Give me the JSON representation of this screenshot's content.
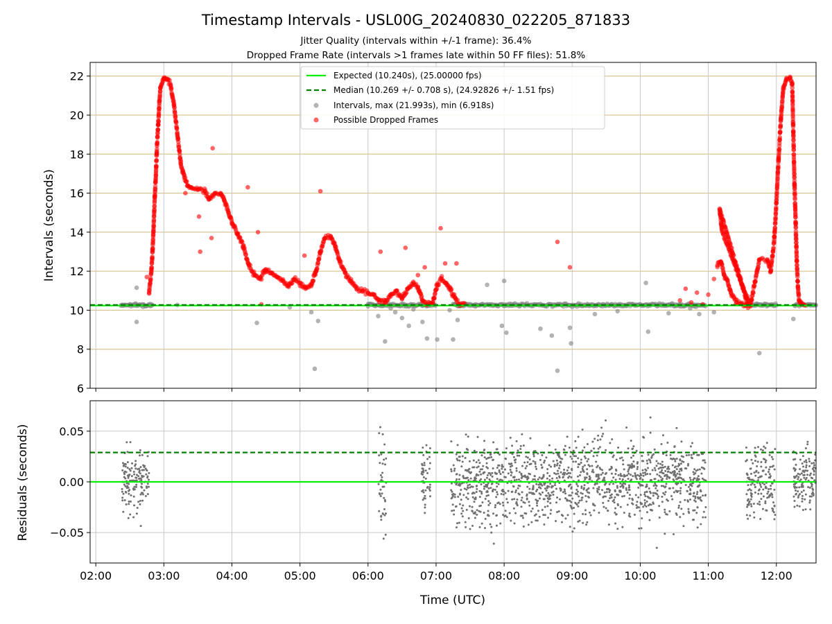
{
  "title": "Timestamp Intervals - USL00G_20240830_022205_871833",
  "subtitle_line1": "Jitter Quality (intervals within +/-1 frame): 36.4%",
  "subtitle_line2": "Dropped Frame Rate (intervals >1 frames late within 50 FF files): 51.8%",
  "colors": {
    "expected": "#00ee00",
    "median": "#008000",
    "interval_points": "#808080",
    "dropped_points": "#ff0000",
    "hgrid_top": "#d4b87a",
    "vgrid": "#c8c8c8",
    "residual_points": "#707070"
  },
  "chart_data": [
    {
      "type": "scatter",
      "ylabel": "Intervals (seconds)",
      "xlim": [
        "01:55",
        "12:35"
      ],
      "ylim": [
        6,
        22.7
      ],
      "yticks": [
        "6",
        "8",
        "10",
        "12",
        "14",
        "16",
        "18",
        "20",
        "22"
      ],
      "grid": true,
      "legend_position": "top-center",
      "legend": [
        "Expected (10.240s), (25.00000 fps)",
        "Median (10.269 +/- 0.708 s), (24.92826 +/- 1.51 fps)",
        "Intervals, max (21.993s), min (6.918s)",
        "Possible Dropped Frames"
      ],
      "expected_value": 10.24,
      "median_value": 10.269,
      "series": [
        {
          "name": "Intervals, max (21.993s), min (6.918s)",
          "points": [
            [
              "02:24",
              10.25
            ],
            [
              "02:30",
              10.3
            ],
            [
              "02:36",
              10.27
            ],
            [
              "02:42",
              10.28
            ],
            [
              "02:48",
              10.32
            ],
            [
              "02:36",
              11.15
            ],
            [
              "02:36",
              9.4
            ],
            [
              "03:12",
              10.27
            ],
            [
              "04:22",
              9.35
            ],
            [
              "04:51",
              10.15
            ],
            [
              "05:10",
              9.9
            ],
            [
              "05:13",
              7.0
            ],
            [
              "05:16",
              9.45
            ],
            [
              "06:00",
              10.2
            ],
            [
              "06:09",
              9.7
            ],
            [
              "06:15",
              8.4
            ],
            [
              "06:20",
              10.1
            ],
            [
              "06:24",
              9.9
            ],
            [
              "06:30",
              9.6
            ],
            [
              "06:36",
              9.2
            ],
            [
              "06:40",
              10.05
            ],
            [
              "06:48",
              9.4
            ],
            [
              "06:52",
              8.55
            ],
            [
              "07:01",
              8.5
            ],
            [
              "07:12",
              10.0
            ],
            [
              "07:15",
              8.5
            ],
            [
              "07:19",
              9.5
            ],
            [
              "07:25",
              10.25
            ],
            [
              "07:35",
              10.3
            ],
            [
              "07:45",
              11.3
            ],
            [
              "08:00",
              11.5
            ],
            [
              "07:58",
              9.2
            ],
            [
              "08:02",
              8.85
            ],
            [
              "08:32",
              9.05
            ],
            [
              "08:42",
              8.7
            ],
            [
              "08:47",
              6.9
            ],
            [
              "08:58",
              9.1
            ],
            [
              "08:59",
              8.3
            ],
            [
              "09:20",
              9.8
            ],
            [
              "09:40",
              9.95
            ],
            [
              "10:05",
              11.4
            ],
            [
              "10:07",
              8.9
            ],
            [
              "10:25",
              9.85
            ],
            [
              "10:35",
              10.2
            ],
            [
              "10:44",
              10.1
            ],
            [
              "10:52",
              9.8
            ],
            [
              "11:05",
              9.9
            ],
            [
              "11:45",
              7.8
            ],
            [
              "11:52",
              10.3
            ],
            [
              "12:00",
              10.25
            ],
            [
              "12:15",
              9.55
            ],
            [
              "12:20",
              10.3
            ],
            [
              "12:30",
              10.25
            ]
          ]
        },
        {
          "name": "Possible Dropped Frames",
          "points": [
            [
              "02:47",
              10.9
            ],
            [
              "02:49",
              12.0
            ],
            [
              "02:50",
              13.0
            ],
            [
              "02:51",
              14.3
            ],
            [
              "02:52",
              15.8
            ],
            [
              "02:53",
              17.0
            ],
            [
              "02:54",
              18.5
            ],
            [
              "02:55",
              19.5
            ],
            [
              "02:56",
              20.6
            ],
            [
              "02:57",
              21.4
            ],
            [
              "03:00",
              21.9
            ],
            [
              "03:03",
              21.8
            ],
            [
              "03:06",
              21.5
            ],
            [
              "03:09",
              20.5
            ],
            [
              "03:12",
              19.0
            ],
            [
              "03:15",
              17.5
            ],
            [
              "03:18",
              16.8
            ],
            [
              "03:21",
              16.4
            ],
            [
              "03:24",
              16.3
            ],
            [
              "03:30",
              16.2
            ],
            [
              "03:36",
              16.1
            ],
            [
              "03:40",
              15.7
            ],
            [
              "03:45",
              16.0
            ],
            [
              "03:50",
              16.0
            ],
            [
              "03:53",
              15.7
            ],
            [
              "03:57",
              15.0
            ],
            [
              "04:00",
              14.5
            ],
            [
              "04:05",
              13.9
            ],
            [
              "04:10",
              13.3
            ],
            [
              "04:15",
              12.3
            ],
            [
              "04:20",
              11.8
            ],
            [
              "04:25",
              11.6
            ],
            [
              "04:30",
              12.1
            ],
            [
              "04:35",
              11.9
            ],
            [
              "04:40",
              11.7
            ],
            [
              "04:45",
              11.5
            ],
            [
              "04:50",
              11.2
            ],
            [
              "04:55",
              11.6
            ],
            [
              "05:00",
              11.4
            ],
            [
              "05:05",
              11.1
            ],
            [
              "05:10",
              11.3
            ],
            [
              "05:14",
              12.0
            ],
            [
              "05:18",
              13.0
            ],
            [
              "05:22",
              13.7
            ],
            [
              "05:27",
              13.8
            ],
            [
              "05:31",
              13.3
            ],
            [
              "05:35",
              12.5
            ],
            [
              "05:40",
              11.9
            ],
            [
              "05:45",
              11.5
            ],
            [
              "05:50",
              11.1
            ],
            [
              "05:55",
              11.0
            ],
            [
              "06:00",
              10.9
            ],
            [
              "06:05",
              10.8
            ],
            [
              "06:10",
              10.5
            ],
            [
              "06:15",
              10.4
            ],
            [
              "06:20",
              10.8
            ],
            [
              "06:25",
              11.0
            ],
            [
              "06:30",
              10.6
            ],
            [
              "06:35",
              11.1
            ],
            [
              "06:40",
              11.4
            ],
            [
              "06:44",
              11.2
            ],
            [
              "06:48",
              10.5
            ],
            [
              "06:52",
              10.3
            ],
            [
              "06:57",
              10.4
            ],
            [
              "07:01",
              11.3
            ],
            [
              "07:05",
              11.6
            ],
            [
              "07:09",
              11.4
            ],
            [
              "07:13",
              11.0
            ],
            [
              "07:17",
              10.6
            ],
            [
              "07:21",
              10.3
            ],
            [
              "07:25",
              10.35
            ],
            [
              "02:45",
              11.7
            ],
            [
              "03:19",
              16.0
            ],
            [
              "03:31",
              14.8
            ],
            [
              "03:32",
              13.0
            ],
            [
              "03:42",
              13.7
            ],
            [
              "03:43",
              18.3
            ],
            [
              "04:14",
              16.3
            ],
            [
              "04:23",
              14.0
            ],
            [
              "04:26",
              10.3
            ],
            [
              "05:04",
              12.8
            ],
            [
              "05:18",
              16.1
            ],
            [
              "06:11",
              13.0
            ],
            [
              "06:33",
              13.2
            ],
            [
              "06:44",
              11.8
            ],
            [
              "06:50",
              12.2
            ],
            [
              "07:04",
              14.2
            ],
            [
              "07:08",
              12.4
            ],
            [
              "07:18",
              12.4
            ],
            [
              "08:47",
              13.5
            ],
            [
              "08:58",
              12.2
            ],
            [
              "10:35",
              10.5
            ],
            [
              "10:40",
              11.1
            ],
            [
              "10:45",
              10.4
            ],
            [
              "10:50",
              10.9
            ],
            [
              "10:55",
              10.3
            ],
            [
              "11:00",
              10.8
            ],
            [
              "11:05",
              11.6
            ],
            [
              "11:08",
              12.3
            ],
            [
              "11:11",
              12.5
            ],
            [
              "11:14",
              11.8
            ],
            [
              "11:17",
              11.5
            ],
            [
              "11:20",
              10.9
            ],
            [
              "11:25",
              10.4
            ],
            [
              "11:30",
              10.3
            ],
            [
              "11:35",
              10.25
            ],
            [
              "11:10",
              15.2
            ],
            [
              "11:12",
              14.1
            ],
            [
              "11:37",
              10.2
            ],
            [
              "11:45",
              12.6
            ],
            [
              "11:52",
              12.6
            ],
            [
              "11:55",
              12.0
            ],
            [
              "11:58",
              13.5
            ],
            [
              "12:00",
              15.5
            ],
            [
              "12:02",
              17.8
            ],
            [
              "12:04",
              19.8
            ],
            [
              "12:06",
              21.3
            ],
            [
              "12:09",
              21.9
            ],
            [
              "12:12",
              21.9
            ],
            [
              "12:14",
              21.6
            ],
            [
              "12:15",
              19.0
            ],
            [
              "12:16",
              16.5
            ],
            [
              "12:17",
              14.5
            ],
            [
              "12:18",
              12.5
            ],
            [
              "12:19",
              11.2
            ],
            [
              "12:20",
              10.5
            ],
            [
              "12:22",
              10.3
            ],
            [
              "12:25",
              10.25
            ]
          ]
        }
      ]
    },
    {
      "type": "scatter",
      "xlabel": "Time (UTC)",
      "ylabel": "Residuals (seconds)",
      "xlim": [
        "01:55",
        "12:35"
      ],
      "ylim": [
        -0.08,
        0.08
      ],
      "yticks": [
        "−0.05",
        "0.00",
        "0.05"
      ],
      "xticks": [
        "02:00",
        "03:00",
        "04:00",
        "05:00",
        "06:00",
        "07:00",
        "08:00",
        "09:00",
        "10:00",
        "11:00",
        "12:00"
      ],
      "grid": true,
      "expected_residual": 0.0,
      "median_residual": 0.029,
      "point_clusters": [
        {
          "from": "02:23",
          "to": "02:47",
          "sd": 0.03
        },
        {
          "from": "06:09",
          "to": "06:16",
          "sd": 0.05
        },
        {
          "from": "06:47",
          "to": "06:55",
          "sd": 0.03
        },
        {
          "from": "07:13",
          "to": "10:58",
          "sd": 0.04
        },
        {
          "from": "11:33",
          "to": "11:59",
          "sd": 0.035
        },
        {
          "from": "12:15",
          "to": "12:35",
          "sd": 0.03
        }
      ]
    }
  ]
}
